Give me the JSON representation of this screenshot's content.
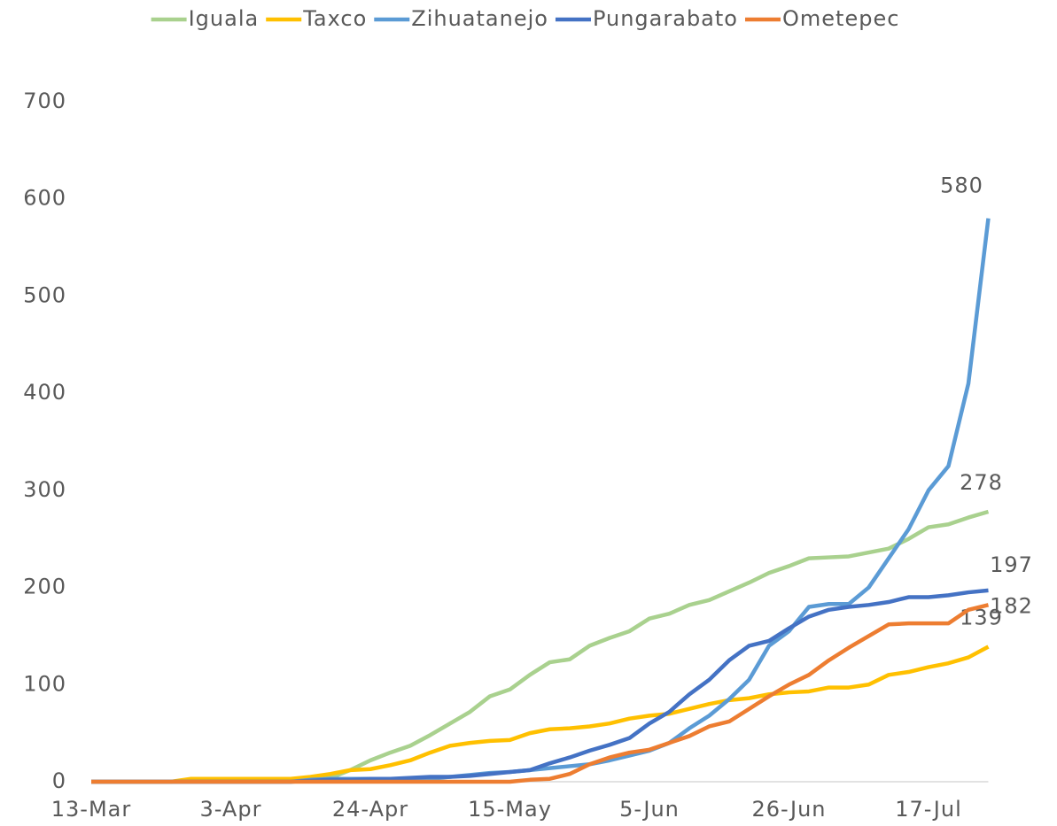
{
  "chart_data": {
    "type": "line",
    "categories": [
      "13-Mar",
      null,
      null,
      null,
      null,
      null,
      null,
      "3-Apr",
      null,
      null,
      null,
      null,
      null,
      null,
      "24-Apr",
      null,
      null,
      null,
      null,
      null,
      null,
      "15-May",
      null,
      null,
      null,
      null,
      null,
      null,
      "5-Jun",
      null,
      null,
      null,
      null,
      null,
      null,
      "26-Jun",
      null,
      null,
      null,
      null,
      null,
      null,
      "17-Jul",
      null,
      null,
      null
    ],
    "series": [
      {
        "name": "Iguala",
        "color": "#a9d18e",
        "values": [
          0,
          0,
          0,
          0,
          0,
          0,
          0,
          0,
          0,
          0,
          0,
          1,
          4,
          12,
          22,
          30,
          37,
          48,
          60,
          72,
          88,
          95,
          110,
          123,
          126,
          140,
          148,
          155,
          168,
          173,
          182,
          187,
          196,
          205,
          215,
          222,
          230,
          231,
          232,
          236,
          240,
          250,
          262,
          265,
          272,
          278
        ]
      },
      {
        "name": "Taxco",
        "color": "#ffc000",
        "values": [
          0,
          0,
          0,
          0,
          0,
          3,
          3,
          3,
          3,
          3,
          3,
          5,
          8,
          12,
          13,
          17,
          22,
          30,
          37,
          40,
          42,
          43,
          50,
          54,
          55,
          57,
          60,
          65,
          68,
          70,
          75,
          80,
          84,
          86,
          90,
          92,
          93,
          97,
          97,
          100,
          110,
          113,
          118,
          122,
          128,
          139
        ]
      },
      {
        "name": "Zihuatanejo",
        "color": "#5b9bd5",
        "values": [
          0,
          0,
          0,
          0,
          0,
          0,
          0,
          0,
          0,
          0,
          0,
          2,
          3,
          3,
          3,
          3,
          3,
          3,
          5,
          7,
          9,
          10,
          12,
          14,
          16,
          18,
          22,
          27,
          32,
          40,
          55,
          68,
          85,
          105,
          140,
          155,
          180,
          183,
          183,
          200,
          230,
          260,
          300,
          325,
          410,
          580
        ]
      },
      {
        "name": "Pungarabato",
        "color": "#4472c4",
        "values": [
          0,
          0,
          0,
          0,
          0,
          0,
          0,
          0,
          0,
          0,
          0,
          1,
          2,
          2,
          3,
          3,
          4,
          5,
          5,
          6,
          8,
          10,
          12,
          19,
          25,
          32,
          38,
          45,
          60,
          72,
          90,
          105,
          125,
          140,
          145,
          158,
          170,
          177,
          180,
          182,
          185,
          190,
          190,
          192,
          195,
          197
        ]
      },
      {
        "name": "Ometepec",
        "color": "#ed7d31",
        "values": [
          0,
          0,
          0,
          0,
          0,
          0,
          0,
          0,
          0,
          0,
          0,
          0,
          0,
          0,
          0,
          0,
          0,
          0,
          0,
          0,
          0,
          0,
          2,
          3,
          8,
          18,
          25,
          30,
          33,
          40,
          47,
          57,
          62,
          75,
          88,
          100,
          110,
          125,
          138,
          150,
          162,
          163,
          163,
          163,
          177,
          182
        ]
      }
    ],
    "ylim": [
      0,
      700
    ],
    "yticks": [
      0,
      100,
      200,
      300,
      400,
      500,
      600,
      700
    ],
    "grid": false,
    "legend": "top"
  }
}
